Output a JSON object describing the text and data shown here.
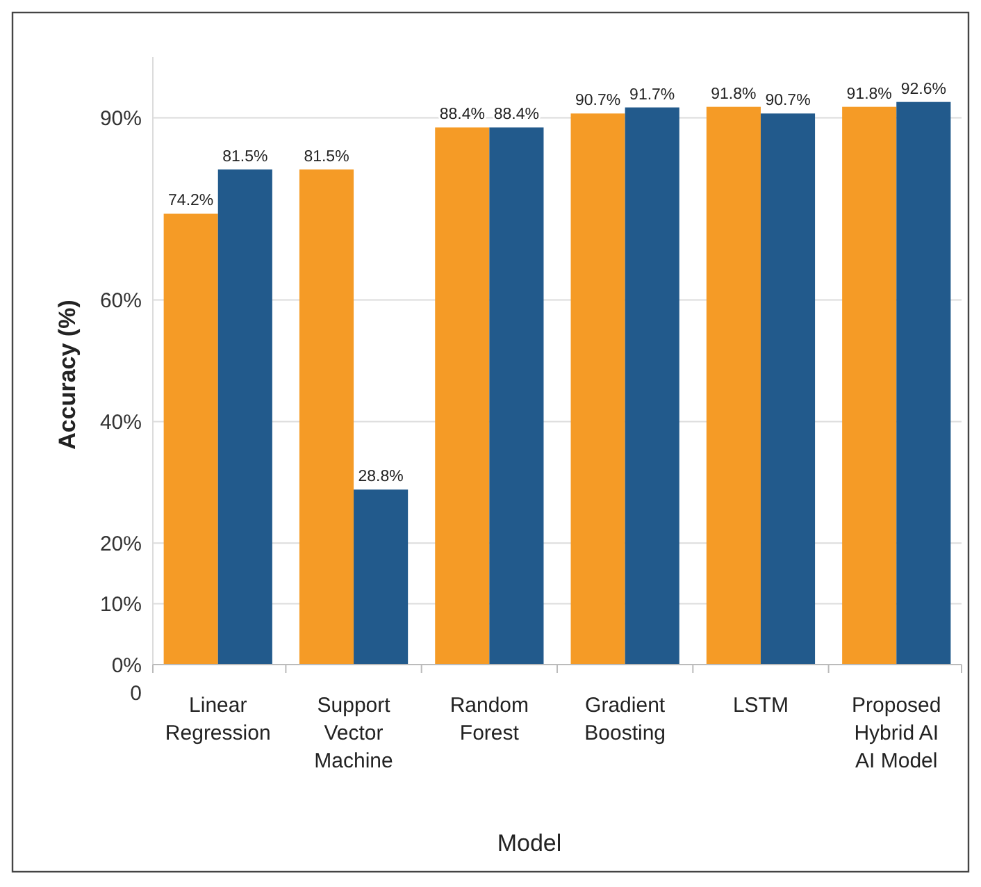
{
  "chart_data": {
    "type": "bar",
    "xlabel": "Model",
    "ylabel": "Accuracy (%)",
    "categories": [
      "Linear Regression",
      "Support Vector Machine",
      "Random Forest",
      "Gradient Boosting",
      "LSTM",
      "Proposed Hybrid AI AI Model"
    ],
    "series": [
      {
        "color": "#f59b26",
        "values": [
          74.2,
          81.5,
          88.4,
          90.7,
          91.8,
          91.8
        ],
        "value_labels": [
          "74.2%",
          "81.5%",
          "88.4%",
          "90.7%",
          "91.8%",
          "91.8%"
        ]
      },
      {
        "color": "#225a8c",
        "values": [
          81.5,
          28.8,
          88.4,
          91.7,
          90.7,
          92.6
        ],
        "value_labels": [
          "81.5%",
          "28.8%",
          "88.4%",
          "91.7%",
          "90.7%",
          "92.6%"
        ]
      }
    ],
    "ylim": [
      0,
      100
    ],
    "annotations": [
      "0"
    ],
    "yticks": [
      {
        "value": 0,
        "label": "0%"
      },
      {
        "value": 20,
        "label": "20%"
      },
      {
        "value": 10,
        "label": "10%"
      },
      {
        "value": 40,
        "label": "40%"
      },
      {
        "value": 60,
        "label": "60%"
      },
      {
        "value": 90,
        "label": "90%"
      }
    ],
    "grid": "y"
  }
}
